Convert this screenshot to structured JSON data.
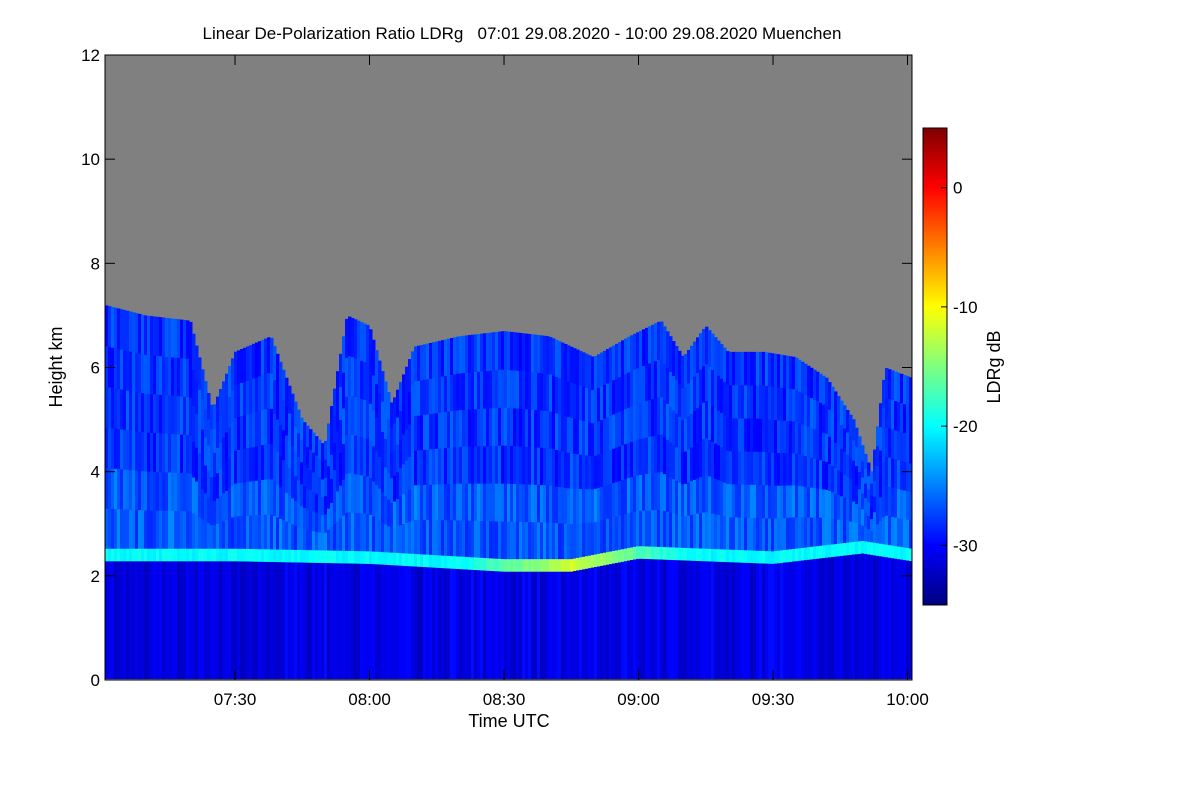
{
  "chart_data": {
    "type": "heatmap",
    "title": "Linear De-Polarization Ratio LDRg   07:01 29.08.2020 - 10:00 29.08.2020 Muenchen",
    "xlabel": "Time UTC",
    "ylabel": "Height km",
    "x_range": [
      "07:01",
      "10:01"
    ],
    "x_ticks": [
      "07:30",
      "08:00",
      "08:30",
      "09:00",
      "09:30",
      "10:00"
    ],
    "y_range": [
      0,
      12
    ],
    "y_ticks": [
      0,
      2,
      4,
      6,
      8,
      10,
      12
    ],
    "colorbar": {
      "label": "LDRg dB",
      "range": [
        -35,
        5
      ],
      "ticks": [
        0,
        -10,
        -20,
        -30
      ],
      "colormap": [
        "#00007f",
        "#0000ff",
        "#007fff",
        "#00ffff",
        "#7fff7f",
        "#ffff00",
        "#ff7f00",
        "#ff0000",
        "#7f0000"
      ]
    },
    "missing_color": "#808080",
    "features": {
      "cloud_top_km_by_time": [
        [
          "07:01",
          7.2
        ],
        [
          "07:10",
          7.0
        ],
        [
          "07:20",
          6.9
        ],
        [
          "07:25",
          5.2
        ],
        [
          "07:30",
          6.3
        ],
        [
          "07:38",
          6.6
        ],
        [
          "07:45",
          5.0
        ],
        [
          "07:50",
          4.5
        ],
        [
          "07:55",
          7.0
        ],
        [
          "08:00",
          6.8
        ],
        [
          "08:05",
          5.3
        ],
        [
          "08:10",
          6.4
        ],
        [
          "08:20",
          6.6
        ],
        [
          "08:30",
          6.7
        ],
        [
          "08:40",
          6.6
        ],
        [
          "08:50",
          6.2
        ],
        [
          "08:58",
          6.6
        ],
        [
          "09:05",
          6.9
        ],
        [
          "09:10",
          6.2
        ],
        [
          "09:15",
          6.8
        ],
        [
          "09:20",
          6.3
        ],
        [
          "09:28",
          6.3
        ],
        [
          "09:35",
          6.2
        ],
        [
          "09:42",
          5.8
        ],
        [
          "09:48",
          5.0
        ],
        [
          "09:52",
          4.0
        ],
        [
          "09:55",
          6.0
        ],
        [
          "10:01",
          5.8
        ]
      ],
      "melting_layer": {
        "height_km_by_time": [
          [
            "07:01",
            2.4
          ],
          [
            "07:30",
            2.4
          ],
          [
            "08:00",
            2.35
          ],
          [
            "08:30",
            2.2
          ],
          [
            "08:45",
            2.2
          ],
          [
            "09:00",
            2.45
          ],
          [
            "09:30",
            2.35
          ],
          [
            "09:50",
            2.55
          ],
          [
            "10:01",
            2.4
          ]
        ],
        "ldr_db": -20,
        "peak_ldr_db": -12
      },
      "lower_layer_ldr_db": -31,
      "upper_cloud_ldr_db": -28
    }
  }
}
